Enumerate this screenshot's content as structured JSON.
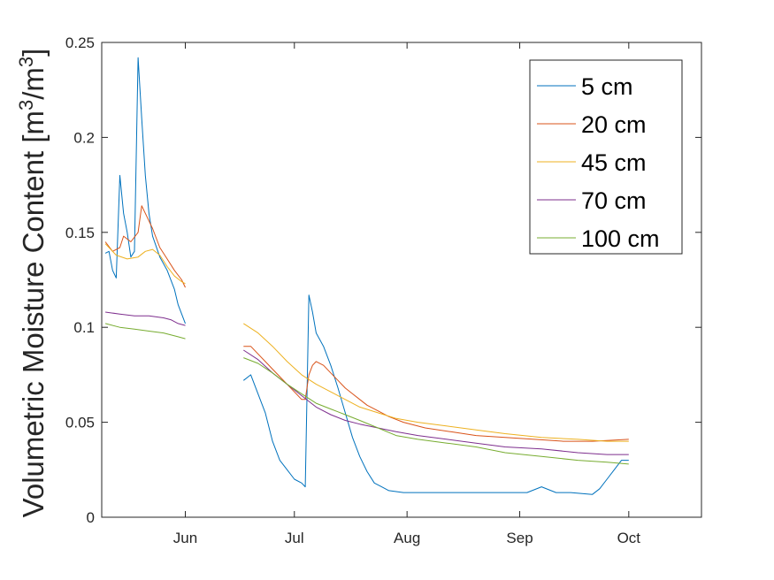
{
  "chart_data": {
    "type": "line",
    "title": "",
    "xlabel": "",
    "ylabel": "Volumetric Moisture Content [m³/m³]",
    "ylabel_parts": [
      "Volumetric Moisture Content [m",
      "3",
      "/m",
      "3",
      "]"
    ],
    "x_unit": "day-of-year",
    "xlim": [
      129,
      294
    ],
    "ylim": [
      0,
      0.25
    ],
    "xticks": [
      {
        "value": 152,
        "label": "Jun"
      },
      {
        "value": 182,
        "label": "Jul"
      },
      {
        "value": 213,
        "label": "Aug"
      },
      {
        "value": 244,
        "label": "Sep"
      },
      {
        "value": 274,
        "label": "Oct"
      }
    ],
    "yticks": [
      {
        "value": 0,
        "label": "0"
      },
      {
        "value": 0.05,
        "label": "0.05"
      },
      {
        "value": 0.1,
        "label": "0.1"
      },
      {
        "value": 0.15,
        "label": "0.15"
      },
      {
        "value": 0.2,
        "label": "0.2"
      },
      {
        "value": 0.25,
        "label": "0.25"
      }
    ],
    "grid": false,
    "legend_position": "top-right",
    "series": [
      {
        "name": "5 cm",
        "color": "#0072BD",
        "segments": [
          [
            [
              130,
              0.139
            ],
            [
              131,
              0.14
            ],
            [
              132,
              0.13
            ],
            [
              133,
              0.126
            ],
            [
              134,
              0.18
            ],
            [
              135,
              0.16
            ],
            [
              136,
              0.15
            ],
            [
              137,
              0.137
            ],
            [
              138,
              0.14
            ],
            [
              139,
              0.242
            ],
            [
              140,
              0.21
            ],
            [
              141,
              0.18
            ],
            [
              142,
              0.16
            ],
            [
              143,
              0.148
            ],
            [
              145,
              0.137
            ],
            [
              147,
              0.13
            ],
            [
              149,
              0.12
            ],
            [
              150,
              0.112
            ],
            [
              151,
              0.107
            ],
            [
              152,
              0.102
            ]
          ],
          [
            [
              168,
              0.072
            ],
            [
              170,
              0.075
            ],
            [
              172,
              0.065
            ],
            [
              174,
              0.055
            ],
            [
              176,
              0.04
            ],
            [
              178,
              0.03
            ],
            [
              180,
              0.025
            ],
            [
              182,
              0.02
            ],
            [
              184,
              0.018
            ],
            [
              185,
              0.016
            ],
            [
              186,
              0.117
            ],
            [
              187,
              0.108
            ],
            [
              188,
              0.097
            ],
            [
              190,
              0.09
            ],
            [
              192,
              0.08
            ],
            [
              194,
              0.068
            ],
            [
              196,
              0.055
            ],
            [
              198,
              0.042
            ],
            [
              200,
              0.032
            ],
            [
              202,
              0.024
            ],
            [
              204,
              0.018
            ],
            [
              206,
              0.016
            ],
            [
              208,
              0.014
            ],
            [
              212,
              0.013
            ],
            [
              220,
              0.013
            ],
            [
              230,
              0.013
            ],
            [
              240,
              0.013
            ],
            [
              246,
              0.013
            ],
            [
              250,
              0.016
            ],
            [
              254,
              0.013
            ],
            [
              258,
              0.013
            ],
            [
              264,
              0.012
            ],
            [
              266,
              0.015
            ],
            [
              268,
              0.02
            ],
            [
              270,
              0.025
            ],
            [
              272,
              0.03
            ],
            [
              274,
              0.03
            ]
          ]
        ]
      },
      {
        "name": "20 cm",
        "color": "#D95319",
        "segments": [
          [
            [
              130,
              0.145
            ],
            [
              132,
              0.14
            ],
            [
              134,
              0.142
            ],
            [
              135,
              0.148
            ],
            [
              137,
              0.145
            ],
            [
              139,
              0.15
            ],
            [
              140,
              0.164
            ],
            [
              141,
              0.16
            ],
            [
              143,
              0.152
            ],
            [
              145,
              0.142
            ],
            [
              147,
              0.136
            ],
            [
              149,
              0.13
            ],
            [
              151,
              0.125
            ],
            [
              152,
              0.121
            ]
          ],
          [
            [
              168,
              0.09
            ],
            [
              170,
              0.09
            ],
            [
              172,
              0.086
            ],
            [
              174,
              0.082
            ],
            [
              176,
              0.078
            ],
            [
              178,
              0.074
            ],
            [
              180,
              0.07
            ],
            [
              182,
              0.066
            ],
            [
              184,
              0.062
            ],
            [
              185,
              0.062
            ],
            [
              186,
              0.075
            ],
            [
              187,
              0.08
            ],
            [
              188,
              0.082
            ],
            [
              190,
              0.08
            ],
            [
              192,
              0.076
            ],
            [
              194,
              0.072
            ],
            [
              196,
              0.068
            ],
            [
              198,
              0.065
            ],
            [
              200,
              0.062
            ],
            [
              202,
              0.059
            ],
            [
              205,
              0.056
            ],
            [
              208,
              0.053
            ],
            [
              212,
              0.05
            ],
            [
              218,
              0.047
            ],
            [
              225,
              0.045
            ],
            [
              232,
              0.043
            ],
            [
              240,
              0.042
            ],
            [
              248,
              0.041
            ],
            [
              256,
              0.04
            ],
            [
              264,
              0.04
            ],
            [
              274,
              0.041
            ]
          ]
        ]
      },
      {
        "name": "45 cm",
        "color": "#EDB120",
        "segments": [
          [
            [
              130,
              0.144
            ],
            [
              133,
              0.138
            ],
            [
              136,
              0.136
            ],
            [
              139,
              0.137
            ],
            [
              141,
              0.14
            ],
            [
              143,
              0.141
            ],
            [
              145,
              0.138
            ],
            [
              147,
              0.132
            ],
            [
              149,
              0.127
            ],
            [
              151,
              0.124
            ],
            [
              152,
              0.123
            ]
          ],
          [
            [
              168,
              0.102
            ],
            [
              172,
              0.097
            ],
            [
              176,
              0.09
            ],
            [
              180,
              0.082
            ],
            [
              184,
              0.075
            ],
            [
              188,
              0.07
            ],
            [
              192,
              0.066
            ],
            [
              196,
              0.062
            ],
            [
              200,
              0.058
            ],
            [
              205,
              0.055
            ],
            [
              210,
              0.052
            ],
            [
              216,
              0.05
            ],
            [
              224,
              0.048
            ],
            [
              232,
              0.046
            ],
            [
              240,
              0.044
            ],
            [
              250,
              0.042
            ],
            [
              260,
              0.041
            ],
            [
              268,
              0.04
            ],
            [
              274,
              0.04
            ]
          ]
        ]
      },
      {
        "name": "70 cm",
        "color": "#7E2F8E",
        "segments": [
          [
            [
              130,
              0.108
            ],
            [
              134,
              0.107
            ],
            [
              138,
              0.106
            ],
            [
              142,
              0.106
            ],
            [
              146,
              0.105
            ],
            [
              148,
              0.104
            ],
            [
              150,
              0.102
            ],
            [
              152,
              0.101
            ]
          ],
          [
            [
              168,
              0.088
            ],
            [
              172,
              0.083
            ],
            [
              176,
              0.076
            ],
            [
              180,
              0.07
            ],
            [
              184,
              0.064
            ],
            [
              188,
              0.058
            ],
            [
              192,
              0.054
            ],
            [
              196,
              0.051
            ],
            [
              200,
              0.049
            ],
            [
              205,
              0.047
            ],
            [
              210,
              0.045
            ],
            [
              216,
              0.043
            ],
            [
              224,
              0.041
            ],
            [
              232,
              0.039
            ],
            [
              240,
              0.037
            ],
            [
              250,
              0.036
            ],
            [
              260,
              0.034
            ],
            [
              268,
              0.033
            ],
            [
              274,
              0.033
            ]
          ]
        ]
      },
      {
        "name": "100 cm",
        "color": "#77AC30",
        "segments": [
          [
            [
              130,
              0.102
            ],
            [
              134,
              0.1
            ],
            [
              138,
              0.099
            ],
            [
              142,
              0.098
            ],
            [
              146,
              0.097
            ],
            [
              150,
              0.095
            ],
            [
              152,
              0.094
            ]
          ],
          [
            [
              168,
              0.084
            ],
            [
              172,
              0.081
            ],
            [
              176,
              0.076
            ],
            [
              180,
              0.07
            ],
            [
              184,
              0.065
            ],
            [
              188,
              0.06
            ],
            [
              192,
              0.057
            ],
            [
              196,
              0.054
            ],
            [
              200,
              0.051
            ],
            [
              205,
              0.047
            ],
            [
              210,
              0.043
            ],
            [
              216,
              0.041
            ],
            [
              224,
              0.039
            ],
            [
              232,
              0.037
            ],
            [
              240,
              0.034
            ],
            [
              250,
              0.032
            ],
            [
              260,
              0.03
            ],
            [
              268,
              0.029
            ],
            [
              274,
              0.028
            ]
          ]
        ]
      }
    ]
  }
}
